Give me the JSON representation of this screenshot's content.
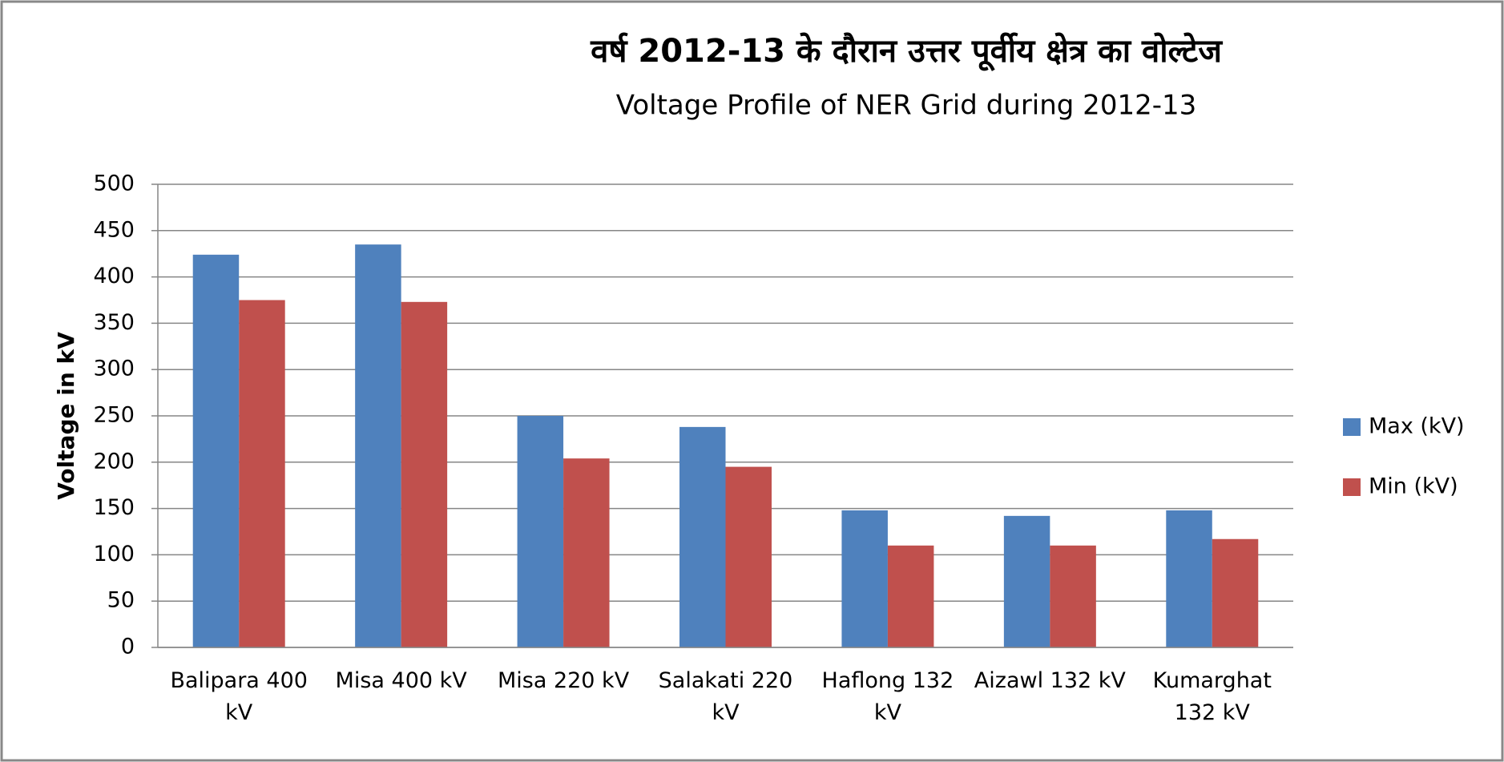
{
  "chart_data": {
    "type": "bar",
    "title": "वर्ष 2012-13 के दौरान उत्तर पूर्वीय क्षेत्र का वोल्टेज",
    "subtitle": "Voltage Profile of NER Grid during 2012-13",
    "y_label": "Voltage in kV",
    "categories": [
      "Balipara 400 kV",
      "Misa 400 kV",
      "Misa 220 kV",
      "Salakati 220 kV",
      "Haflong 132 kV",
      "Aizawl 132 kV",
      "Kumarghat 132 kV"
    ],
    "series": [
      {
        "name": "Max (kV)",
        "color": "#4f81bd",
        "values": [
          424,
          435,
          250,
          238,
          148,
          142,
          148
        ]
      },
      {
        "name": "Min (kV)",
        "color": "#c0504d",
        "values": [
          375,
          373,
          204,
          195,
          110,
          110,
          117
        ]
      }
    ],
    "ylim": [
      0,
      500
    ],
    "yticks": [
      0,
      50,
      100,
      150,
      200,
      250,
      300,
      350,
      400,
      450,
      500
    ],
    "grid": true,
    "legend": "right"
  }
}
